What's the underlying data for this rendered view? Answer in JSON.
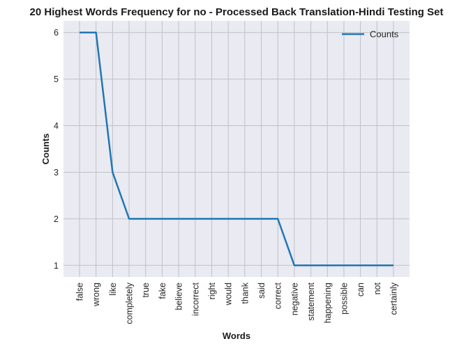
{
  "chart_data": {
    "type": "line",
    "title": "20 Highest Words Frequency for no - Processed Back Translation-Hindi Testing Set",
    "xlabel": "Words",
    "ylabel": "Counts",
    "categories": [
      "false",
      "wrong",
      "like",
      "completely",
      "true",
      "fake",
      "believe",
      "incorrect",
      "right",
      "would",
      "thank",
      "said",
      "correct",
      "negative",
      "statement",
      "happening",
      "possible",
      "can",
      "not",
      "certainly"
    ],
    "series": [
      {
        "name": "Counts",
        "values": [
          6,
          6,
          3,
          2,
          2,
          2,
          2,
          2,
          2,
          2,
          2,
          2,
          2,
          1,
          1,
          1,
          1,
          1,
          1,
          1
        ]
      }
    ],
    "ylim": [
      0.75,
      6.25
    ],
    "yticks": [
      1,
      2,
      3,
      4,
      5,
      6
    ],
    "grid": true,
    "legend_position": "top-right",
    "colors": {
      "line": "#1f77b4",
      "plot_bg": "#eaeaf2",
      "grid": "#c0c0c6"
    }
  }
}
